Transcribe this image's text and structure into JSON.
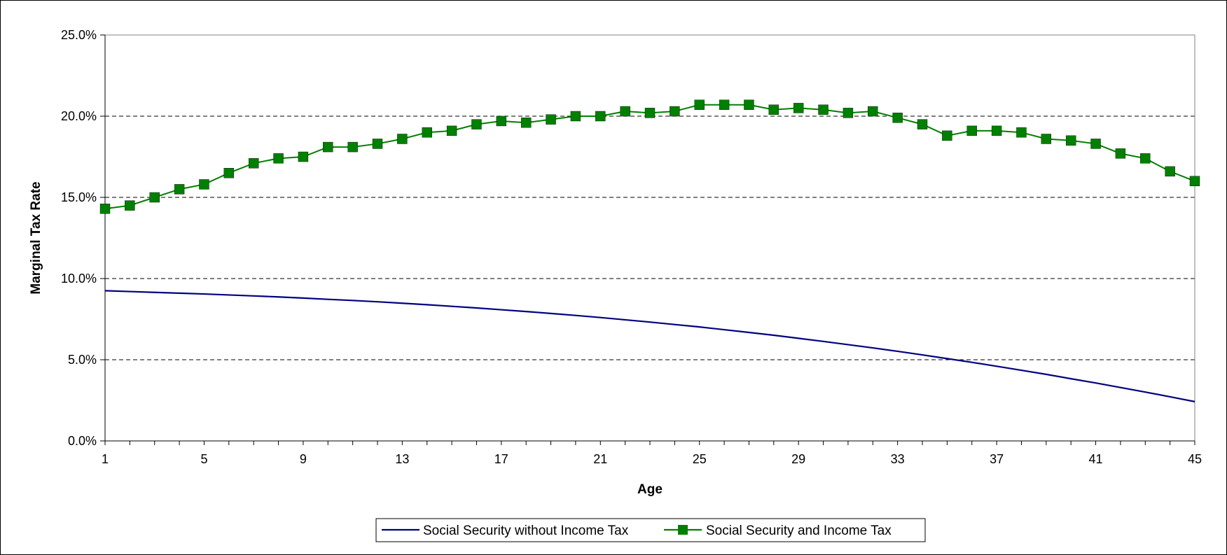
{
  "chart_data": {
    "type": "line",
    "title": "",
    "xlabel": "Age",
    "ylabel": "Marginal Tax Rate",
    "xlim": [
      1,
      45
    ],
    "ylim": [
      0,
      0.25
    ],
    "x_ticks": [
      1,
      5,
      9,
      13,
      17,
      21,
      25,
      29,
      33,
      37,
      41,
      45
    ],
    "y_ticks": [
      {
        "value": 0.0,
        "label": "0.0%"
      },
      {
        "value": 0.05,
        "label": "5.0%"
      },
      {
        "value": 0.1,
        "label": "10.0%"
      },
      {
        "value": 0.15,
        "label": "15.0%"
      },
      {
        "value": 0.2,
        "label": "20.0%"
      },
      {
        "value": 0.25,
        "label": "25.0%"
      }
    ],
    "grid": "horizontal dashed",
    "legend_position": "bottom",
    "x": [
      1,
      2,
      3,
      4,
      5,
      6,
      7,
      8,
      9,
      10,
      11,
      12,
      13,
      14,
      15,
      16,
      17,
      18,
      19,
      20,
      21,
      22,
      23,
      24,
      25,
      26,
      27,
      28,
      29,
      30,
      31,
      32,
      33,
      34,
      35,
      36,
      37,
      38,
      39,
      40,
      41,
      42,
      43,
      44,
      45
    ],
    "series": [
      {
        "name": "Social Security without Income Tax",
        "color": "#000080",
        "marker": "none",
        "values": [
          0.0925,
          0.092,
          0.0915,
          0.091,
          0.0905,
          0.0899,
          0.0893,
          0.0887,
          0.088,
          0.0872,
          0.0865,
          0.0857,
          0.0848,
          0.0839,
          0.0829,
          0.0819,
          0.0808,
          0.0797,
          0.0785,
          0.0773,
          0.076,
          0.0746,
          0.0732,
          0.0717,
          0.0702,
          0.0685,
          0.0668,
          0.0651,
          0.0632,
          0.0613,
          0.0593,
          0.0573,
          0.0552,
          0.053,
          0.0507,
          0.0484,
          0.046,
          0.0435,
          0.041,
          0.0383,
          0.0357,
          0.0329,
          0.0301,
          0.0272,
          0.0242
        ]
      },
      {
        "name": "Social Security and Income Tax",
        "color": "#008000",
        "marker": "square",
        "values": [
          0.143,
          0.145,
          0.15,
          0.155,
          0.158,
          0.165,
          0.171,
          0.174,
          0.175,
          0.181,
          0.181,
          0.183,
          0.186,
          0.19,
          0.191,
          0.195,
          0.197,
          0.196,
          0.198,
          0.2,
          0.2,
          0.203,
          0.202,
          0.203,
          0.207,
          0.207,
          0.207,
          0.204,
          0.205,
          0.204,
          0.202,
          0.203,
          0.199,
          0.195,
          0.188,
          0.191,
          0.191,
          0.19,
          0.186,
          0.185,
          0.183,
          0.177,
          0.174,
          0.166,
          0.16
        ]
      }
    ]
  }
}
